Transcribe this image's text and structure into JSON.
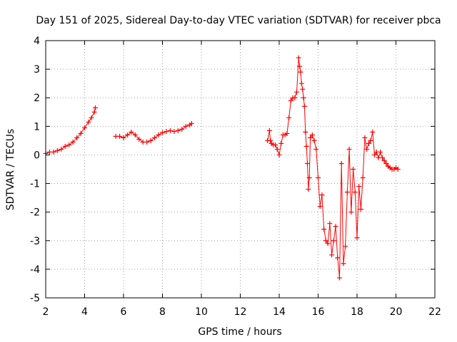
{
  "chart_data": {
    "type": "line",
    "title": "Day 151 of 2025, Sidereal Day-to-day VTEC variation (SDTVAR) for receiver pbca",
    "xlabel": "GPS time / hours",
    "ylabel": "SDTVAR / TECUs",
    "xlim": [
      2,
      22
    ],
    "ylim": [
      -5,
      4
    ],
    "xticks": [
      "2",
      "4",
      "6",
      "8",
      "10",
      "12",
      "14",
      "16",
      "18",
      "20",
      "22"
    ],
    "yticks": [
      "4",
      "3",
      "2",
      "1",
      "0",
      "-1",
      "-2",
      "-3",
      "-4",
      "-5"
    ],
    "grid": true,
    "legend": "none",
    "color": "#ff0000",
    "marker": "plus",
    "segments": [
      {
        "x": [
          2.0,
          2.2,
          2.4,
          2.6,
          2.8,
          3.0,
          3.2,
          3.4,
          3.6,
          3.8,
          4.0,
          4.2,
          4.35,
          4.5,
          4.55
        ],
        "y": [
          0.05,
          0.1,
          0.1,
          0.15,
          0.2,
          0.3,
          0.35,
          0.45,
          0.6,
          0.75,
          0.95,
          1.15,
          1.3,
          1.5,
          1.65
        ]
      },
      {
        "x": [
          5.6,
          5.8,
          6.0,
          6.2,
          6.4,
          6.6,
          6.8,
          7.0,
          7.2,
          7.4,
          7.6,
          7.8,
          8.0,
          8.2,
          8.4,
          8.6,
          8.8,
          9.0,
          9.2,
          9.4,
          9.5
        ],
        "y": [
          0.65,
          0.65,
          0.6,
          0.7,
          0.8,
          0.7,
          0.55,
          0.45,
          0.45,
          0.5,
          0.6,
          0.7,
          0.78,
          0.82,
          0.85,
          0.82,
          0.85,
          0.9,
          1.0,
          1.05,
          1.1
        ]
      },
      {
        "x": [
          13.4,
          13.5,
          13.55,
          13.6,
          13.7,
          13.8,
          13.9,
          14.0,
          14.1,
          14.2,
          14.3,
          14.4,
          14.5,
          14.6,
          14.7,
          14.8,
          14.9,
          15.0,
          15.05,
          15.1,
          15.15,
          15.2,
          15.25,
          15.3,
          15.35,
          15.4,
          15.45,
          15.5,
          15.55,
          15.6,
          15.7,
          15.8,
          15.9,
          16.0,
          16.1,
          16.2,
          16.3,
          16.4,
          16.5,
          16.6,
          16.7,
          16.8,
          16.9,
          17.0,
          17.1,
          17.2,
          17.3,
          17.4,
          17.5,
          17.6,
          17.7,
          17.8,
          17.9,
          18.0,
          18.1,
          18.2,
          18.3,
          18.4,
          18.5,
          18.6,
          18.7,
          18.8,
          18.9,
          19.0,
          19.1,
          19.2,
          19.3,
          19.4,
          19.5,
          19.6,
          19.7,
          19.8,
          19.9,
          20.0,
          20.1
        ],
        "y": [
          0.5,
          0.85,
          0.5,
          0.4,
          0.35,
          0.35,
          0.2,
          0.0,
          0.4,
          0.7,
          0.7,
          0.75,
          1.3,
          1.9,
          2.0,
          2.0,
          2.2,
          3.4,
          3.1,
          2.9,
          2.5,
          2.3,
          2.0,
          1.7,
          0.8,
          0.3,
          -0.3,
          -1.2,
          -0.8,
          0.6,
          0.7,
          0.5,
          0.2,
          -0.8,
          -1.8,
          -1.4,
          -2.6,
          -3.0,
          -3.1,
          -2.4,
          -3.5,
          -3.0,
          -2.5,
          -3.6,
          -4.3,
          -0.3,
          -3.8,
          -3.2,
          -1.3,
          0.2,
          -2.0,
          -0.5,
          -1.3,
          -2.9,
          -1.1,
          -1.9,
          -0.8,
          0.6,
          0.2,
          0.4,
          0.5,
          0.8,
          0.0,
          0.1,
          -0.1,
          0.1,
          -0.1,
          -0.2,
          -0.3,
          -0.4,
          -0.45,
          -0.5,
          -0.5,
          -0.45,
          -0.5
        ]
      }
    ]
  }
}
